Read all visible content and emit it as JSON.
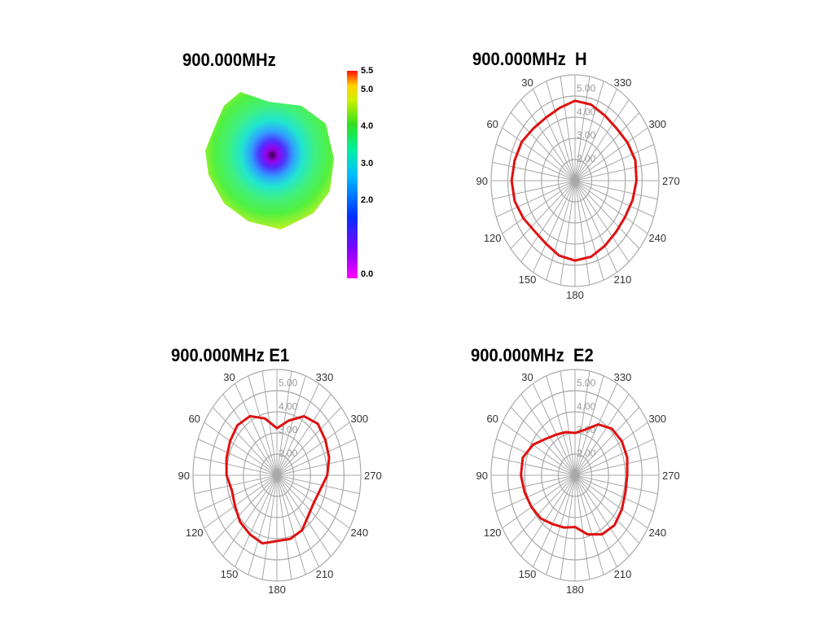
{
  "heatmap": {
    "title": "900.000MHz",
    "colorbar": {
      "min": 0.0,
      "max": 5.5,
      "ticks": [
        "5.5",
        "5.0",
        "4.0",
        "3.0",
        "2.0",
        "0.0"
      ]
    }
  },
  "chart_data": [
    {
      "type": "heatmap",
      "title": "900.000MHz",
      "colorbar_ticks": [
        5.5,
        5.0,
        4.0,
        3.0,
        2.0,
        0.0
      ],
      "range": [
        0.0,
        5.5
      ]
    },
    {
      "type": "polar",
      "title": "900.000MHz  H",
      "radial_ticks": [
        "5.00",
        "4.00",
        "3.00",
        "2.00"
      ],
      "angle_labels": [
        "330",
        "300",
        "270",
        "240",
        "210",
        "180",
        "150",
        "120",
        "90",
        "60",
        "30"
      ],
      "series": [
        {
          "name": "H",
          "angles": [
            0,
            15,
            30,
            45,
            60,
            75,
            90,
            105,
            120,
            135,
            150,
            165,
            180,
            195,
            210,
            225,
            240,
            255,
            270,
            285,
            300,
            315,
            330,
            345
          ],
          "values": [
            4.4,
            4.2,
            4.1,
            4.15,
            4.3,
            4.35,
            4.4,
            4.35,
            4.2,
            4.05,
            4.1,
            4.3,
            4.4,
            4.35,
            4.2,
            4.1,
            4.1,
            4.2,
            4.3,
            4.35,
            4.25,
            4.15,
            4.2,
            4.35
          ]
        }
      ]
    },
    {
      "type": "polar",
      "title": "900.000MHz E1",
      "radial_ticks": [
        "5.00",
        "4.00",
        "3.00",
        "2.00"
      ],
      "angle_labels": [
        "330",
        "300",
        "270",
        "240",
        "210",
        "180",
        "150",
        "120",
        "90",
        "60",
        "30"
      ],
      "series": [
        {
          "name": "E1",
          "angles": [
            0,
            15,
            30,
            45,
            60,
            75,
            90,
            105,
            120,
            135,
            150,
            165,
            180,
            195,
            210,
            225,
            240,
            255,
            270,
            285,
            300,
            315,
            330,
            345
          ],
          "values": [
            3.0,
            3.5,
            3.9,
            4.0,
            3.9,
            3.8,
            3.7,
            3.5,
            3.6,
            3.8,
            3.9,
            4.0,
            3.8,
            3.8,
            3.7,
            3.4,
            3.3,
            3.4,
            3.7,
            3.9,
            4.0,
            4.1,
            3.9,
            3.4
          ]
        }
      ]
    },
    {
      "type": "polar",
      "title": "900.000MHz  E2",
      "radial_ticks": [
        "5.00",
        "4.00",
        "3.00",
        "2.00"
      ],
      "angle_labels": [
        "330",
        "300",
        "270",
        "240",
        "210",
        "180",
        "150",
        "120",
        "90",
        "60",
        "30"
      ],
      "series": [
        {
          "name": "E2",
          "angles": [
            0,
            15,
            30,
            45,
            60,
            75,
            90,
            105,
            120,
            135,
            150,
            165,
            180,
            195,
            210,
            225,
            240,
            255,
            270,
            285,
            300,
            315,
            330,
            345
          ],
          "values": [
            2.8,
            2.9,
            3.0,
            3.2,
            3.6,
            3.9,
            3.9,
            3.8,
            3.7,
            3.6,
            3.4,
            3.3,
            3.2,
            3.6,
            3.9,
            4.0,
            3.9,
            3.8,
            3.8,
            3.9,
            3.9,
            3.8,
            3.5,
            3.0
          ]
        }
      ]
    }
  ]
}
